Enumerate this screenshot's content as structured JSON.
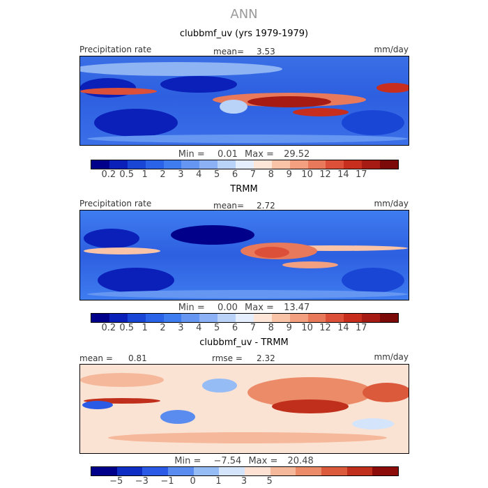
{
  "figure": {
    "season": "ANN"
  },
  "panels": [
    {
      "title": "clubbmf_uv (yrs 1979-1979)",
      "field_label": "Precipitation rate",
      "stat_label": "mean=",
      "stat_value": "3.53",
      "units": "mm/day",
      "min_label": "Min =",
      "min_value": "0.01",
      "max_label": "Max =",
      "max_value": "29.52",
      "field_min": 0.01,
      "field_max": 29.52
    },
    {
      "title": "TRMM",
      "field_label": "Precipitation rate",
      "stat_label": "mean=",
      "stat_value": "2.72",
      "units": "mm/day",
      "min_label": "Min =",
      "min_value": "0.00",
      "max_label": "Max =",
      "max_value": "13.47",
      "field_min": 0.0,
      "field_max": 13.47
    },
    {
      "title": "clubbmf_uv - TRMM",
      "stat1_label": "mean =",
      "stat1_value": "0.81",
      "stat2_label": "rmse =",
      "stat2_value": "2.32",
      "units": "mm/day",
      "min_label": "Min =",
      "min_value": "−7.54",
      "max_label": "Max =",
      "max_value": "20.48",
      "field_min": -7.54,
      "field_max": 20.48
    }
  ],
  "colorbars": {
    "precip": {
      "colors": [
        "#00008b",
        "#0a20b8",
        "#1a46d6",
        "#2a62e8",
        "#3f7cf0",
        "#6496f2",
        "#8cb2f5",
        "#b9d2f8",
        "#e4eefc",
        "#fde6d8",
        "#f8c3a6",
        "#f2a07f",
        "#e87a5b",
        "#dc503a",
        "#c82e1e",
        "#a61c14",
        "#7c0a08"
      ],
      "ticks": [
        "0.2",
        "0.5",
        "1",
        "2",
        "3",
        "4",
        "5",
        "6",
        "7",
        "8",
        "9",
        "10",
        "12",
        "14",
        "17"
      ]
    },
    "diff": {
      "colors": [
        "#00008b",
        "#0f2fc4",
        "#2a5ae6",
        "#5a8cf0",
        "#96bcf5",
        "#d4e4fb",
        "#fde2d4",
        "#f6b89a",
        "#ec8b68",
        "#dc5a3c",
        "#c02e1c",
        "#8c0c0a"
      ],
      "ticks": [
        "−5",
        "−3",
        "−1",
        "0",
        "1",
        "3",
        "5"
      ]
    }
  }
}
